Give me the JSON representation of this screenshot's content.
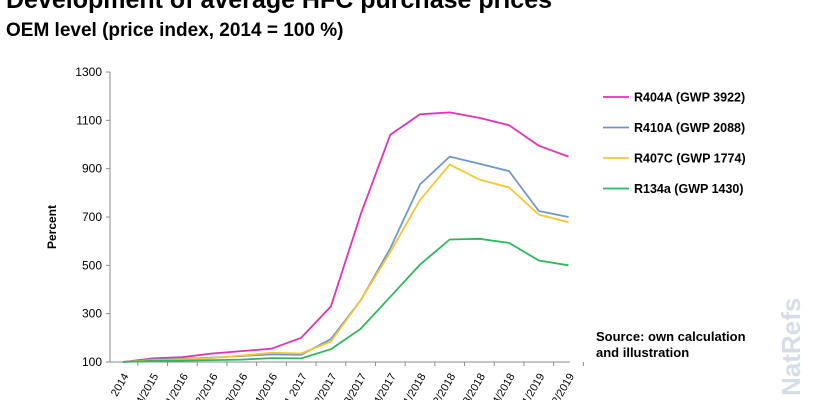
{
  "title": "Development of average HFC purchase prices",
  "subtitle": "OEM level (price index, 2014 = 100 %)",
  "source": "Source: own calculation\nand illustration",
  "watermark": "NatRefs",
  "chart_data": {
    "type": "line",
    "ylabel": "Percent",
    "xlabel": "",
    "ylim": [
      100,
      1300
    ],
    "yticks": [
      100,
      300,
      500,
      700,
      900,
      1100,
      1300
    ],
    "grid": false,
    "legend_position": "right",
    "categories": [
      "2014",
      "Q4/2015",
      "Q1/2016",
      "Q2/2016",
      "Q3/2016",
      "Q4/2016",
      "Q1 2017",
      "Q2/2017",
      "Q3/2017",
      "Q4/2017",
      "Q1/2018",
      "Q2/2018",
      "Q3/2018",
      "Q4/2018",
      "Q1/2019",
      "Q2/2019"
    ],
    "series": [
      {
        "name": "R404A (GWP 3922)",
        "color": "#e033b5",
        "values": [
          100,
          115,
          120,
          135,
          145,
          155,
          200,
          330,
          710,
          1040,
          1125,
          1133,
          1110,
          1080,
          995,
          950
        ]
      },
      {
        "name": "R410A (GWP 2088)",
        "color": "#6f97cc",
        "values": [
          100,
          110,
          113,
          118,
          125,
          132,
          130,
          195,
          355,
          570,
          835,
          950,
          920,
          890,
          725,
          700
        ]
      },
      {
        "name": "R407C (GWP 1774)",
        "color": "#f6c533",
        "values": [
          100,
          108,
          111,
          116,
          127,
          138,
          135,
          185,
          355,
          555,
          770,
          917,
          855,
          822,
          710,
          678
        ]
      },
      {
        "name": "R134a (GWP 1430)",
        "color": "#2eb85c",
        "values": [
          100,
          105,
          106,
          108,
          110,
          116,
          115,
          153,
          237,
          370,
          503,
          607,
          610,
          593,
          520,
          500
        ]
      }
    ]
  }
}
